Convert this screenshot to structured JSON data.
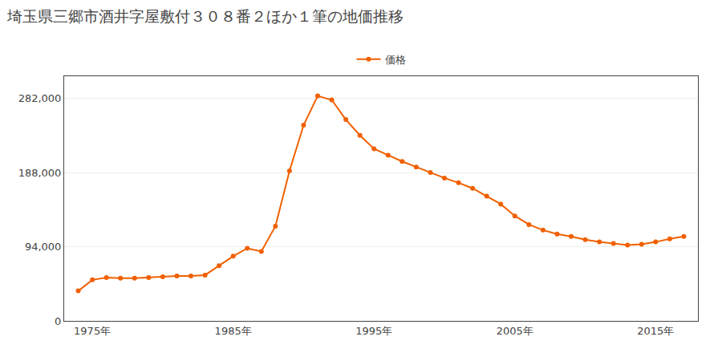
{
  "chart_data": {
    "type": "line",
    "title": "埼玉県三郷市酒井字屋敷付３０８番２ほか１筆の地価推移",
    "x": [
      1974,
      1975,
      1976,
      1977,
      1978,
      1979,
      1980,
      1981,
      1982,
      1983,
      1984,
      1985,
      1986,
      1987,
      1988,
      1989,
      1990,
      1991,
      1992,
      1993,
      1994,
      1995,
      1996,
      1997,
      1998,
      1999,
      2000,
      2001,
      2002,
      2003,
      2004,
      2005,
      2006,
      2007,
      2008,
      2009,
      2010,
      2011,
      2012,
      2013,
      2014,
      2015,
      2016,
      2017
    ],
    "series": [
      {
        "name": "価格",
        "color": "#f06000",
        "marker": "circle",
        "values": [
          38000,
          52000,
          55000,
          54000,
          54000,
          55000,
          56000,
          57000,
          57000,
          58000,
          70000,
          82000,
          92000,
          88000,
          120000,
          190000,
          248000,
          285000,
          280000,
          255000,
          235000,
          218000,
          210000,
          202000,
          195000,
          188000,
          181000,
          175000,
          168000,
          158000,
          148000,
          133000,
          122000,
          115000,
          110000,
          107000,
          103000,
          100000,
          98000,
          96000,
          97000,
          100000,
          104000,
          107000
        ]
      }
    ],
    "xlim": [
      1973,
      2018
    ],
    "xticks": [
      {
        "value": 1975,
        "label": "1975年"
      },
      {
        "value": 1985,
        "label": "1985年"
      },
      {
        "value": 1995,
        "label": "1995年"
      },
      {
        "value": 2005,
        "label": "2005年"
      },
      {
        "value": 2015,
        "label": "2015年"
      }
    ],
    "ylim": [
      0,
      310000
    ],
    "yticks": [
      0,
      {
        "value": 94000,
        "label": "94,000"
      },
      {
        "value": 188000,
        "label": "188,000"
      },
      {
        "value": 282000,
        "label": "282,000"
      }
    ],
    "grid": true,
    "legend": "top"
  }
}
